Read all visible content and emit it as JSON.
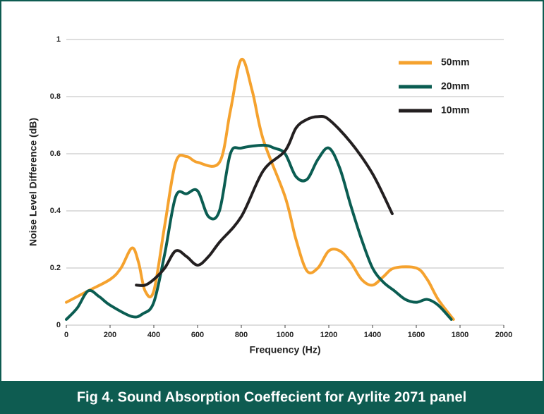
{
  "chart_data": {
    "type": "line",
    "caption": "Fig 4. Sound Absorption Coeffecient for Ayrlite 2071 panel",
    "xlabel": "Frequency (Hz)",
    "ylabel": "Noise Level Difference (dB)",
    "xlim": [
      0,
      2000
    ],
    "xticks": [
      0,
      200,
      400,
      600,
      800,
      1000,
      1200,
      1400,
      1600,
      1800,
      2000
    ],
    "ylim": [
      0,
      1
    ],
    "yticks": [
      0,
      0.2,
      0.4,
      0.6,
      0.8,
      1
    ],
    "grid": true,
    "legend": "upper right",
    "series": [
      {
        "name": "50mm",
        "color": "#f5a22e",
        "x": [
          0,
          100,
          200,
          250,
          300,
          330,
          360,
          400,
          450,
          500,
          550,
          600,
          700,
          750,
          800,
          850,
          900,
          1000,
          1050,
          1100,
          1150,
          1200,
          1250,
          1300,
          1350,
          1400,
          1450,
          1500,
          1600,
          1650,
          1700,
          1770
        ],
        "values": [
          0.08,
          0.12,
          0.16,
          0.2,
          0.27,
          0.22,
          0.12,
          0.12,
          0.35,
          0.57,
          0.59,
          0.57,
          0.57,
          0.75,
          0.93,
          0.82,
          0.65,
          0.45,
          0.3,
          0.19,
          0.2,
          0.26,
          0.26,
          0.22,
          0.16,
          0.14,
          0.17,
          0.2,
          0.2,
          0.16,
          0.09,
          0.02
        ]
      },
      {
        "name": "20mm",
        "color": "#0b5d52",
        "x": [
          0,
          50,
          100,
          150,
          200,
          300,
          350,
          400,
          450,
          500,
          550,
          600,
          650,
          700,
          750,
          800,
          900,
          950,
          1000,
          1050,
          1100,
          1150,
          1200,
          1250,
          1300,
          1350,
          1400,
          1450,
          1500,
          1550,
          1600,
          1650,
          1700,
          1760
        ],
        "values": [
          0.02,
          0.06,
          0.12,
          0.1,
          0.07,
          0.03,
          0.04,
          0.08,
          0.25,
          0.45,
          0.46,
          0.47,
          0.38,
          0.4,
          0.6,
          0.62,
          0.63,
          0.62,
          0.6,
          0.52,
          0.51,
          0.58,
          0.62,
          0.55,
          0.42,
          0.3,
          0.2,
          0.15,
          0.12,
          0.09,
          0.08,
          0.09,
          0.07,
          0.02
        ]
      },
      {
        "name": "10mm",
        "color": "#231f20",
        "x": [
          320,
          360,
          400,
          450,
          500,
          550,
          600,
          650,
          700,
          800,
          900,
          1000,
          1050,
          1100,
          1150,
          1200,
          1300,
          1400,
          1490
        ],
        "values": [
          0.14,
          0.14,
          0.16,
          0.2,
          0.26,
          0.24,
          0.21,
          0.24,
          0.29,
          0.38,
          0.54,
          0.61,
          0.69,
          0.72,
          0.73,
          0.72,
          0.64,
          0.53,
          0.39
        ]
      }
    ]
  }
}
